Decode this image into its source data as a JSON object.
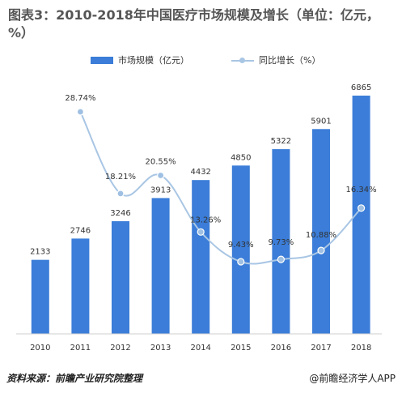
{
  "title": "图表3：2010-2018年中国医疗市场规模及增长（单位：亿元，%）",
  "source": "资料来源：前瞻产业研究院整理",
  "credit": "@前瞻经济学人APP",
  "colors": {
    "bar": "#3b7dd8",
    "line": "#a9c6e4",
    "marker": "#9fc0e3"
  },
  "chart_data": {
    "type": "bar",
    "title": "图表3：2010-2018年中国医疗市场规模及增长（单位：亿元，%）",
    "categories": [
      "2010",
      "2011",
      "2012",
      "2013",
      "2014",
      "2015",
      "2016",
      "2017",
      "2018"
    ],
    "series": [
      {
        "name": "市场规模（亿元）",
        "type": "bar",
        "values": [
          2133,
          2746,
          3246,
          3913,
          4432,
          4850,
          5322,
          5901,
          6865
        ],
        "labels": [
          "2133",
          "2746",
          "3246",
          "3913",
          "4432",
          "4850",
          "5322",
          "5901",
          "6865"
        ]
      },
      {
        "name": "同比增长（%）",
        "type": "line",
        "values": [
          null,
          28.74,
          18.21,
          20.55,
          13.26,
          9.43,
          9.73,
          10.88,
          16.34
        ],
        "labels": [
          "",
          "28.74%",
          "18.21%",
          "20.55%",
          "13.26%",
          "9.43%",
          "9.73%",
          "10.88%",
          "16.34%"
        ]
      }
    ],
    "legend_position": "top",
    "grid": false
  }
}
